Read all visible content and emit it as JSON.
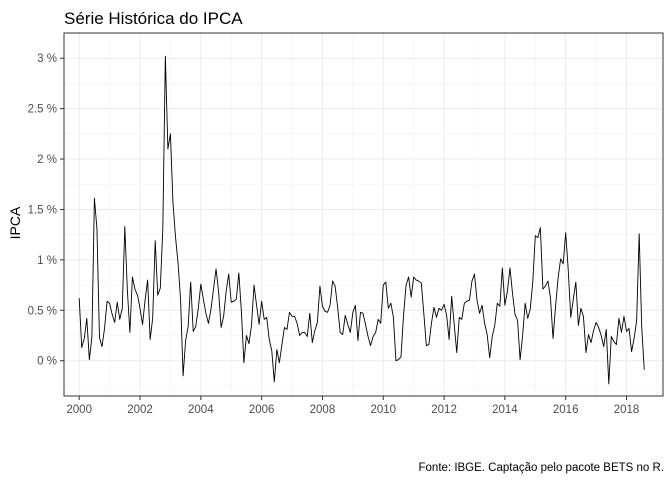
{
  "chart_data": {
    "type": "line",
    "title": "Série Histórica do IPCA",
    "ylabel": "IPCA",
    "xlabel": "",
    "caption": "Fonte: IBGE. Captação pelo pacote BETS no R.",
    "xlim": [
      1999.5,
      2019.2
    ],
    "ylim": [
      -0.35,
      3.25
    ],
    "x_ticks": [
      2000,
      2002,
      2004,
      2006,
      2008,
      2010,
      2012,
      2014,
      2016,
      2018
    ],
    "x_tick_labels": [
      "2000",
      "2002",
      "2004",
      "2006",
      "2008",
      "2010",
      "2012",
      "2014",
      "2016",
      "2018"
    ],
    "y_ticks": [
      0,
      0.5,
      1,
      1.5,
      2,
      2.5,
      3
    ],
    "y_tick_labels": [
      "0 %",
      "0.5 %",
      "1 %",
      "1.5 %",
      "2 %",
      "2.5 %",
      "3 %"
    ],
    "grid": true,
    "start_year": 2000,
    "series": [
      {
        "color": "#000000",
        "values": [
          0.62,
          0.13,
          0.22,
          0.42,
          0.01,
          0.23,
          1.61,
          1.31,
          0.23,
          0.14,
          0.32,
          0.59,
          0.57,
          0.46,
          0.38,
          0.58,
          0.41,
          0.52,
          1.33,
          0.7,
          0.28,
          0.83,
          0.71,
          0.65,
          0.52,
          0.36,
          0.6,
          0.8,
          0.21,
          0.42,
          1.19,
          0.65,
          0.72,
          1.31,
          3.02,
          2.1,
          2.25,
          1.57,
          1.23,
          0.97,
          0.61,
          -0.15,
          0.2,
          0.34,
          0.78,
          0.29,
          0.34,
          0.52,
          0.76,
          0.61,
          0.47,
          0.37,
          0.51,
          0.71,
          0.91,
          0.69,
          0.33,
          0.44,
          0.69,
          0.86,
          0.58,
          0.59,
          0.61,
          0.87,
          0.49,
          -0.02,
          0.25,
          0.17,
          0.35,
          0.75,
          0.55,
          0.36,
          0.59,
          0.41,
          0.43,
          0.21,
          0.1,
          -0.21,
          0.11,
          -0.02,
          0.16,
          0.33,
          0.31,
          0.48,
          0.44,
          0.44,
          0.37,
          0.25,
          0.28,
          0.28,
          0.24,
          0.47,
          0.18,
          0.3,
          0.38,
          0.74,
          0.54,
          0.49,
          0.48,
          0.55,
          0.79,
          0.74,
          0.53,
          0.28,
          0.26,
          0.45,
          0.36,
          0.28,
          0.48,
          0.55,
          0.2,
          0.48,
          0.47,
          0.36,
          0.24,
          0.15,
          0.24,
          0.28,
          0.41,
          0.37,
          0.75,
          0.78,
          0.52,
          0.57,
          0.43,
          0.0,
          0.01,
          0.04,
          0.45,
          0.75,
          0.83,
          0.63,
          0.83,
          0.8,
          0.79,
          0.77,
          0.47,
          0.15,
          0.16,
          0.37,
          0.53,
          0.43,
          0.52,
          0.5,
          0.56,
          0.45,
          0.21,
          0.64,
          0.36,
          0.08,
          0.43,
          0.41,
          0.57,
          0.59,
          0.6,
          0.79,
          0.86,
          0.6,
          0.47,
          0.55,
          0.37,
          0.26,
          0.03,
          0.24,
          0.35,
          0.57,
          0.54,
          0.92,
          0.55,
          0.69,
          0.92,
          0.67,
          0.46,
          0.4,
          0.01,
          0.25,
          0.57,
          0.42,
          0.51,
          0.78,
          1.24,
          1.22,
          1.32,
          0.71,
          0.74,
          0.79,
          0.62,
          0.22,
          0.54,
          0.82,
          1.01,
          0.96,
          1.27,
          0.9,
          0.43,
          0.61,
          0.78,
          0.35,
          0.52,
          0.44,
          0.08,
          0.26,
          0.18,
          0.3,
          0.38,
          0.33,
          0.25,
          0.14,
          0.31,
          -0.23,
          0.24,
          0.19,
          0.16,
          0.42,
          0.28,
          0.44,
          0.29,
          0.32,
          0.09,
          0.22,
          0.4,
          1.26,
          0.33,
          -0.09
        ]
      }
    ]
  }
}
